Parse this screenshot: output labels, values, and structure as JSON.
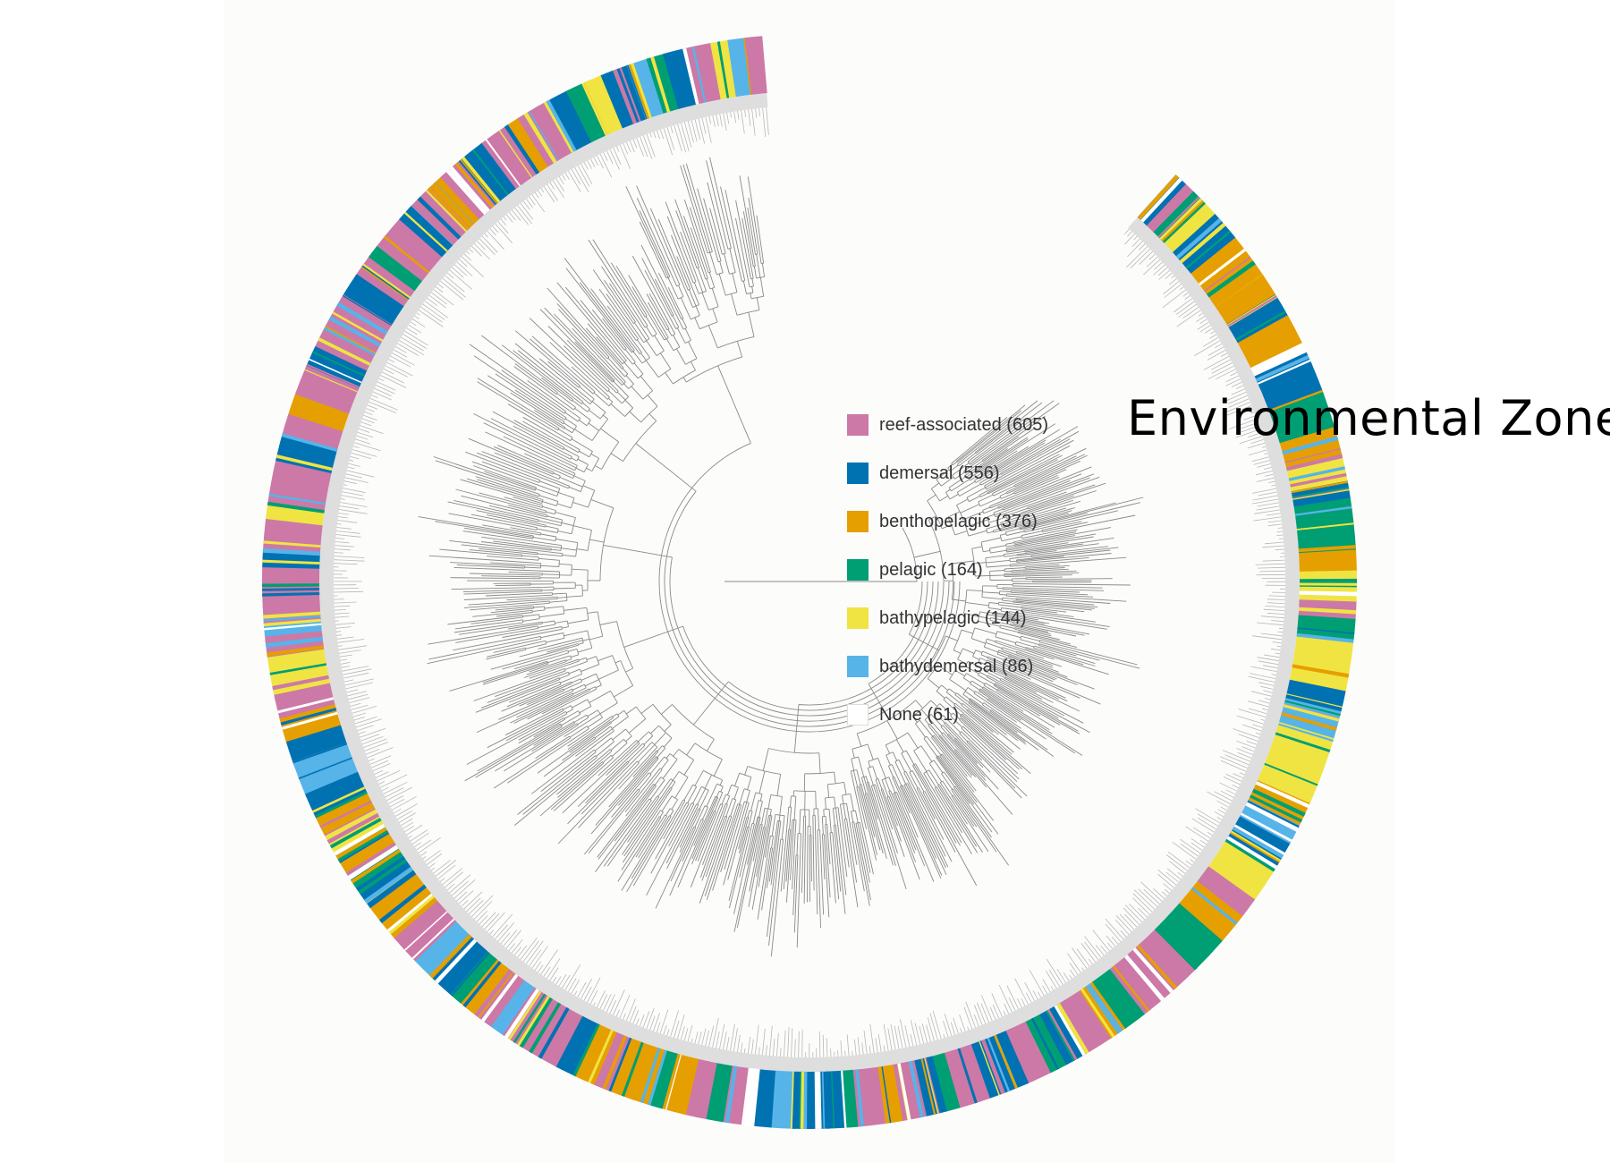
{
  "title": "Environmental Zone",
  "colors": {
    "reef-associated": "#cc79a7",
    "demersal": "#0072b2",
    "benthopelagic": "#e69f00",
    "pelagic": "#009e73",
    "bathypelagic": "#f0e442",
    "bathydemersal": "#56b4e9",
    "None": "#ffffff",
    "branch": "#8a8a8a",
    "bar": "#bdbdbd"
  },
  "legend": [
    {
      "key": "reef-associated",
      "label": "reef-associated (605)",
      "count": 605,
      "color": "#cc79a7"
    },
    {
      "key": "demersal",
      "label": "demersal (556)",
      "count": 556,
      "color": "#0072b2"
    },
    {
      "key": "benthopelagic",
      "label": "benthopelagic (376)",
      "count": 376,
      "color": "#e69f00"
    },
    {
      "key": "pelagic",
      "label": "pelagic (164)",
      "count": 164,
      "color": "#009e73"
    },
    {
      "key": "bathypelagic",
      "label": "bathypelagic (144)",
      "count": 144,
      "color": "#f0e442"
    },
    {
      "key": "bathydemersal",
      "label": "bathydemersal (86)",
      "count": 86,
      "color": "#56b4e9"
    },
    {
      "key": "None",
      "label": "None (61)",
      "count": 61,
      "color": "#ffffff"
    }
  ],
  "ring_segments": [
    [
      "demersal",
      8
    ],
    [
      "reef-associated",
      6
    ],
    [
      "pelagic",
      10
    ],
    [
      "bathypelagic",
      8
    ],
    [
      "demersal",
      18
    ],
    [
      "benthopelagic",
      40
    ],
    [
      "demersal",
      14
    ],
    [
      "benthopelagic",
      18
    ],
    [
      "None",
      6
    ],
    [
      "demersal",
      24
    ],
    [
      "pelagic",
      22
    ],
    [
      "benthopelagic",
      18
    ],
    [
      "bathypelagic",
      14
    ],
    [
      "demersal",
      10
    ],
    [
      "pelagic",
      30
    ],
    [
      "benthopelagic",
      12
    ],
    [
      "bathypelagic",
      18
    ],
    [
      "reef-associated",
      10
    ],
    [
      "pelagic",
      12
    ],
    [
      "bathypelagic",
      30
    ],
    [
      "demersal",
      12
    ],
    [
      "bathydemersal",
      16
    ],
    [
      "bathypelagic",
      40
    ],
    [
      "benthopelagic",
      14
    ],
    [
      "bathydemersal",
      12
    ],
    [
      "demersal",
      18
    ],
    [
      "bathypelagic",
      20
    ],
    [
      "reef-associated",
      12
    ],
    [
      "benthopelagic",
      18
    ],
    [
      "pelagic",
      22
    ],
    [
      "reef-associated",
      40
    ],
    [
      "pelagic",
      14
    ],
    [
      "benthopelagic",
      10
    ],
    [
      "reef-associated",
      16
    ],
    [
      "demersal",
      14
    ],
    [
      "pelagic",
      10
    ],
    [
      "reef-associated",
      14
    ],
    [
      "demersal",
      24
    ],
    [
      "reef-associated",
      18
    ],
    [
      "pelagic",
      8
    ],
    [
      "demersal",
      12
    ],
    [
      "reef-associated",
      14
    ],
    [
      "benthopelagic",
      10
    ],
    [
      "reef-associated",
      16
    ],
    [
      "pelagic",
      8
    ],
    [
      "demersal",
      30
    ],
    [
      "bathydemersal",
      12
    ],
    [
      "demersal",
      10
    ],
    [
      "None",
      6
    ],
    [
      "reef-associated",
      12
    ],
    [
      "pelagic",
      10
    ],
    [
      "reef-associated",
      12
    ],
    [
      "benthopelagic",
      14
    ],
    [
      "pelagic",
      8
    ],
    [
      "benthopelagic",
      24
    ],
    [
      "reef-associated",
      10
    ],
    [
      "benthopelagic",
      12
    ],
    [
      "demersal",
      12
    ],
    [
      "reef-associated",
      36
    ],
    [
      "bathydemersal",
      8
    ],
    [
      "reef-associated",
      12
    ],
    [
      "benthopelagic",
      10
    ],
    [
      "pelagic",
      8
    ],
    [
      "demersal",
      16
    ],
    [
      "bathydemersal",
      12
    ],
    [
      "reef-associated",
      18
    ],
    [
      "benthopelagic",
      22
    ],
    [
      "demersal",
      10
    ],
    [
      "pelagic",
      12
    ],
    [
      "benthopelagic",
      16
    ],
    [
      "bathypelagic",
      12
    ],
    [
      "benthopelagic",
      12
    ],
    [
      "demersal",
      14
    ],
    [
      "bathydemersal",
      20
    ],
    [
      "demersal",
      12
    ],
    [
      "benthopelagic",
      14
    ],
    [
      "reef-associated",
      14
    ],
    [
      "bathypelagic",
      22
    ],
    [
      "reef-associated",
      12
    ],
    [
      "bathydemersal",
      10
    ],
    [
      "reef-associated",
      30
    ],
    [
      "demersal",
      10
    ],
    [
      "reef-associated",
      18
    ],
    [
      "bathypelagic",
      8
    ],
    [
      "reef-associated",
      26
    ],
    [
      "demersal",
      16
    ],
    [
      "reef-associated",
      12
    ],
    [
      "benthopelagic",
      12
    ],
    [
      "reef-associated",
      16
    ],
    [
      "demersal",
      14
    ],
    [
      "reef-associated",
      34
    ],
    [
      "demersal",
      14
    ],
    [
      "reef-associated",
      12
    ],
    [
      "pelagic",
      8
    ],
    [
      "reef-associated",
      20
    ],
    [
      "demersal",
      10
    ],
    [
      "reef-associated",
      16
    ],
    [
      "benthopelagic",
      8
    ],
    [
      "reef-associated",
      14
    ],
    [
      "demersal",
      16
    ],
    [
      "reef-associated",
      18
    ],
    [
      "benthopelagic",
      8
    ],
    [
      "reef-associated",
      20
    ],
    [
      "demersal",
      12
    ],
    [
      "pelagic",
      10
    ],
    [
      "bathypelagic",
      12
    ],
    [
      "demersal",
      16
    ],
    [
      "bathydemersal",
      12
    ],
    [
      "pelagic",
      10
    ],
    [
      "demersal",
      12
    ],
    [
      "reef-associated",
      16
    ],
    [
      "bathypelagic",
      10
    ],
    [
      "bathydemersal",
      10
    ],
    [
      "reef-associated",
      10
    ]
  ]
}
